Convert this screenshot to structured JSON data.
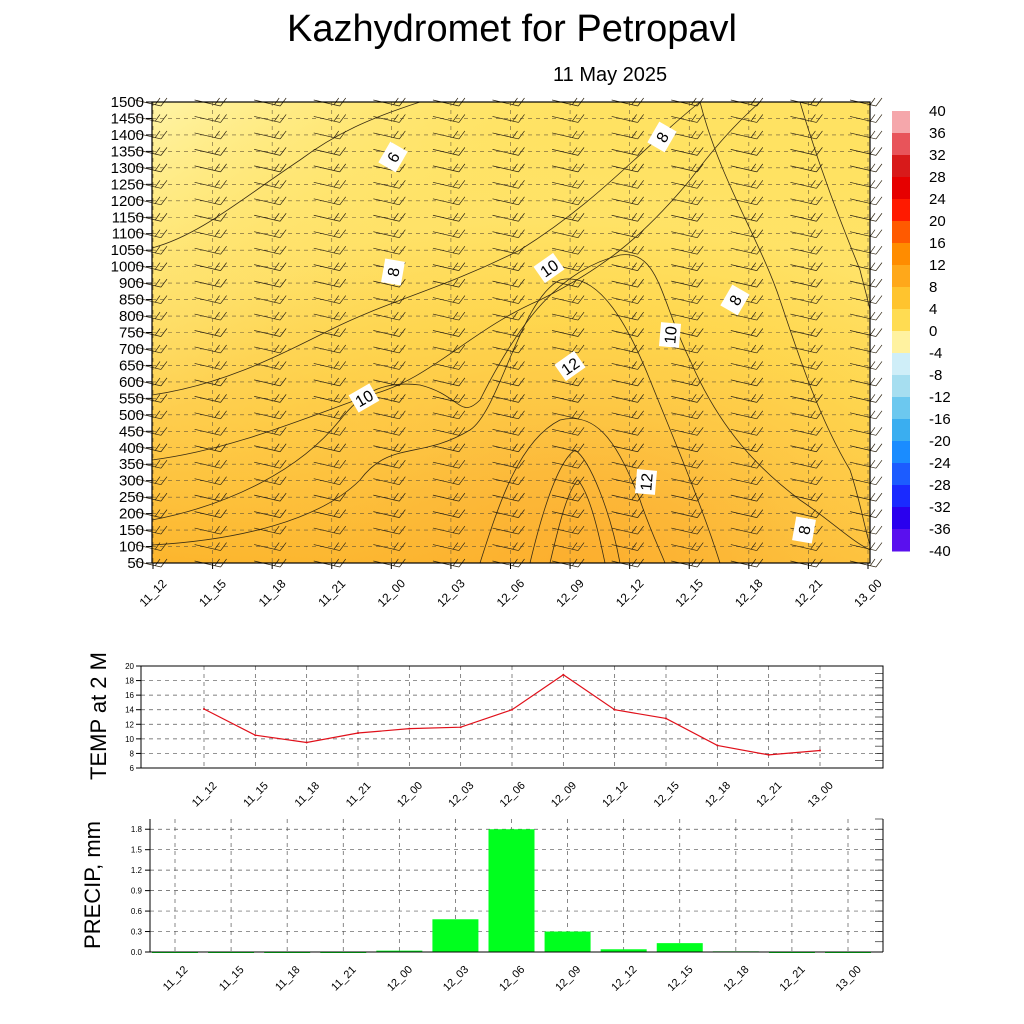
{
  "header": {
    "title": "Kazhydromet  for Petropavl",
    "date": "11 May 2025"
  },
  "chart_data": [
    {
      "type": "heatmap",
      "title": "",
      "y_ticks": [
        50,
        100,
        150,
        200,
        250,
        300,
        350,
        400,
        450,
        500,
        550,
        600,
        650,
        700,
        750,
        800,
        850,
        900,
        1000,
        1050,
        1100,
        1150,
        1200,
        1250,
        1300,
        1350,
        1400,
        1450,
        1500
      ],
      "x_ticks": [
        "11_12",
        "11_15",
        "11_18",
        "11_21",
        "12_00",
        "12_03",
        "12_06",
        "12_09",
        "12_12",
        "12_15",
        "12_18",
        "12_21",
        "13_00"
      ],
      "contour_labels": [
        "6",
        "8",
        "8",
        "8",
        "8",
        "10",
        "10",
        "10",
        "12",
        "12"
      ],
      "colorbar": {
        "ticks": [
          "40",
          "36",
          "32",
          "28",
          "24",
          "20",
          "16",
          "12",
          "8",
          "4",
          "0",
          "-4",
          "-8",
          "-12",
          "-16",
          "-20",
          "-24",
          "-28",
          "-32",
          "-36",
          "-40"
        ],
        "range": [
          -40,
          40
        ]
      },
      "grid": true
    },
    {
      "type": "line",
      "ylabel": "TEMP at 2 M",
      "x": [
        "11_12",
        "11_15",
        "11_18",
        "11_21",
        "12_00",
        "12_03",
        "12_06",
        "12_09",
        "12_12",
        "12_15",
        "12_18",
        "12_21",
        "13_00"
      ],
      "values": [
        14.1,
        10.5,
        9.5,
        10.8,
        11.4,
        11.6,
        14.0,
        18.8,
        14.0,
        12.8,
        9.1,
        7.8,
        8.4
      ],
      "yticks": [
        "6",
        "8",
        "10",
        "12",
        "14",
        "16",
        "18",
        "20"
      ],
      "ylim": [
        6,
        20
      ],
      "color": "#e0101a",
      "grid": true
    },
    {
      "type": "bar",
      "ylabel": "PRECIP, mm",
      "categories": [
        "11_12",
        "11_15",
        "11_18",
        "11_21",
        "12_00",
        "12_03",
        "12_06",
        "12_09",
        "12_12",
        "12_15",
        "12_18",
        "12_21",
        "13_00"
      ],
      "values": [
        0.0,
        0.0,
        0.0,
        0.0,
        0.02,
        0.48,
        1.8,
        0.3,
        0.04,
        0.13,
        0.01,
        0.0,
        0.0
      ],
      "yticks": [
        "0.0",
        "0.3",
        "0.6",
        "0.9",
        "1.2",
        "1.5",
        "1.8"
      ],
      "ylim": [
        0,
        1.95
      ],
      "color": "#00ff1e",
      "grid": true
    }
  ]
}
